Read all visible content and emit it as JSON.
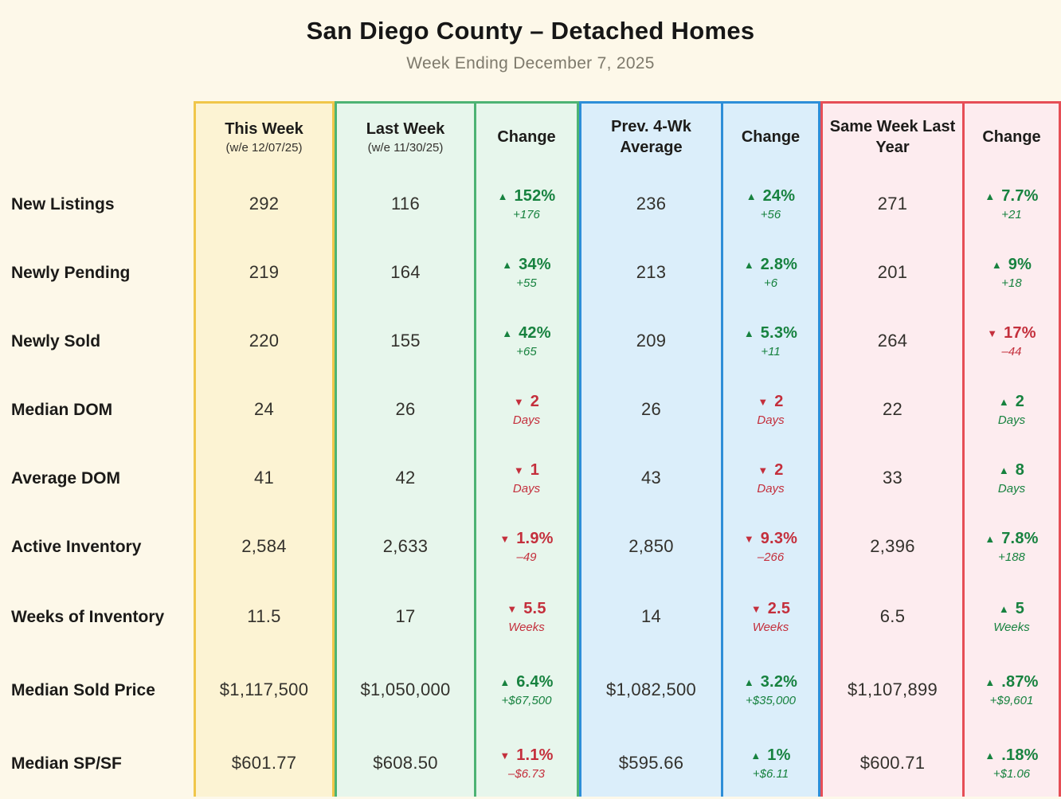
{
  "page": {
    "title": "San Diego County – Detached Homes",
    "subtitle": "Week Ending December 7, 2025"
  },
  "colors": {
    "page_bg": "#fdf8e9",
    "up": "#17823f",
    "down": "#c42f3c",
    "subtitle": "#7e7a6c"
  },
  "icons": {
    "up_arrow": "▲",
    "down_arrow": "▼"
  },
  "chart_data": {
    "type": "table",
    "title": "San Diego County – Detached Homes",
    "subtitle": "Week Ending December 7, 2025",
    "metrics": [
      "New Listings",
      "Newly Pending",
      "Newly Sold",
      "Median DOM",
      "Average DOM",
      "Active Inventory",
      "Weeks of Inventory",
      "Median Sold Price",
      "Median SP/SF"
    ],
    "series": [
      {
        "id": "this_week",
        "name": "This Week",
        "sublabel": "(w/e 12/07/25)",
        "values": [
          "292",
          "219",
          "220",
          "24",
          "41",
          "2,584",
          "11.5",
          "$1,117,500",
          "$601.77"
        ]
      },
      {
        "id": "last_week",
        "name": "Last Week",
        "sublabel": "(w/e 11/30/25)",
        "values": [
          "116",
          "164",
          "155",
          "26",
          "42",
          "2,633",
          "17",
          "$1,050,000",
          "$608.50"
        ]
      },
      {
        "id": "change_vs_last_week",
        "name": "Change",
        "changes": [
          {
            "dir": "up",
            "main": "152%",
            "sub": "+176"
          },
          {
            "dir": "up",
            "main": "34%",
            "sub": "+55"
          },
          {
            "dir": "up",
            "main": "42%",
            "sub": "+65"
          },
          {
            "dir": "down",
            "main": "2",
            "sub": "Days"
          },
          {
            "dir": "down",
            "main": "1",
            "sub": "Days"
          },
          {
            "dir": "down",
            "main": "1.9%",
            "sub": "–49"
          },
          {
            "dir": "down",
            "main": "5.5",
            "sub": "Weeks"
          },
          {
            "dir": "up",
            "main": "6.4%",
            "sub": "+$67,500"
          },
          {
            "dir": "down",
            "main": "1.1%",
            "sub": "–$6.73"
          }
        ]
      },
      {
        "id": "prev_4wk_average",
        "name": "Prev. 4-Wk Average",
        "values": [
          "236",
          "213",
          "209",
          "26",
          "43",
          "2,850",
          "14",
          "$1,082,500",
          "$595.66"
        ]
      },
      {
        "id": "change_vs_4wk_average",
        "name": "Change",
        "changes": [
          {
            "dir": "up",
            "main": "24%",
            "sub": "+56"
          },
          {
            "dir": "up",
            "main": "2.8%",
            "sub": "+6"
          },
          {
            "dir": "up",
            "main": "5.3%",
            "sub": "+11"
          },
          {
            "dir": "down",
            "main": "2",
            "sub": "Days"
          },
          {
            "dir": "down",
            "main": "2",
            "sub": "Days"
          },
          {
            "dir": "down",
            "main": "9.3%",
            "sub": "–266"
          },
          {
            "dir": "down",
            "main": "2.5",
            "sub": "Weeks"
          },
          {
            "dir": "up",
            "main": "3.2%",
            "sub": "+$35,000"
          },
          {
            "dir": "up",
            "main": "1%",
            "sub": "+$6.11"
          }
        ]
      },
      {
        "id": "same_week_last_year",
        "name": "Same Week Last Year",
        "values": [
          "271",
          "201",
          "264",
          "22",
          "33",
          "2,396",
          "6.5",
          "$1,107,899",
          "$600.71"
        ]
      },
      {
        "id": "change_vs_last_year",
        "name": "Change",
        "changes": [
          {
            "dir": "up",
            "main": "7.7%",
            "sub": "+21"
          },
          {
            "dir": "up",
            "main": "9%",
            "sub": "+18"
          },
          {
            "dir": "down",
            "main": "17%",
            "sub": "–44"
          },
          {
            "dir": "up",
            "main": "2",
            "sub": "Days"
          },
          {
            "dir": "up",
            "main": "8",
            "sub": "Days"
          },
          {
            "dir": "up",
            "main": "7.8%",
            "sub": "+188"
          },
          {
            "dir": "up",
            "main": "5",
            "sub": "Weeks"
          },
          {
            "dir": "up",
            "main": ".87%",
            "sub": "+$9,601"
          },
          {
            "dir": "up",
            "main": ".18%",
            "sub": "+$1.06"
          }
        ]
      }
    ],
    "groups": [
      {
        "id": "this-week",
        "border": "#f0c64a",
        "bg": "#fcf3d3",
        "series_indexes": [
          0
        ]
      },
      {
        "id": "vs-last-week",
        "border": "#4db374",
        "bg": "#e7f6ec",
        "series_indexes": [
          1,
          2
        ]
      },
      {
        "id": "vs-4wk-average",
        "border": "#2d8ed8",
        "bg": "#dbeefa",
        "series_indexes": [
          3,
          4
        ]
      },
      {
        "id": "vs-last-year",
        "border": "#e64e56",
        "bg": "#fdecef",
        "series_indexes": [
          5,
          6
        ]
      }
    ]
  }
}
